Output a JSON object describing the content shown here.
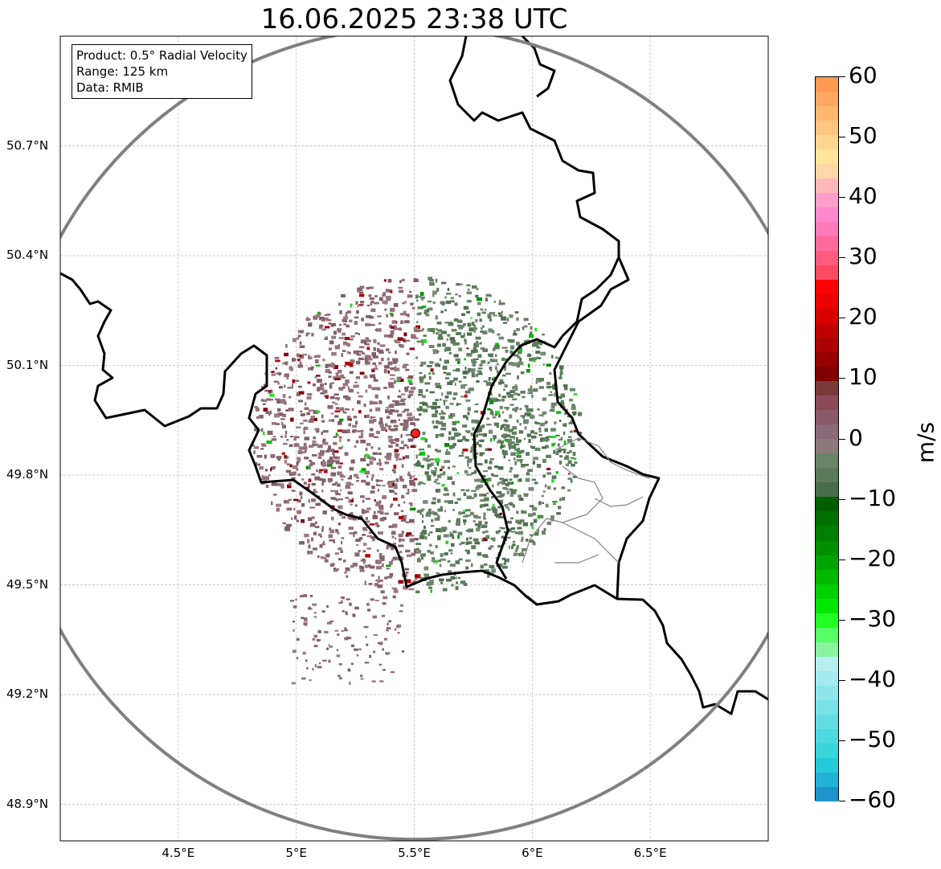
{
  "title": "16.06.2025 23:38 UTC",
  "info_box": {
    "product": "Product: 0.5° Radial Velocity",
    "range": "Range: 125 km",
    "source": "Data: RMIB"
  },
  "map": {
    "lon_range": [
      4.0,
      7.0
    ],
    "lat_range": [
      48.8,
      51.0
    ],
    "radar_site": {
      "lon": 5.505,
      "lat": 49.914
    },
    "lat_ticks": [
      {
        "value": 50.7,
        "label": "50.7°N"
      },
      {
        "value": 50.4,
        "label": "50.4°N"
      },
      {
        "value": 50.1,
        "label": "50.1°N"
      },
      {
        "value": 49.8,
        "label": "49.8°N"
      },
      {
        "value": 49.5,
        "label": "49.5°N"
      },
      {
        "value": 49.2,
        "label": "49.2°N"
      },
      {
        "value": 48.9,
        "label": "48.9°N"
      }
    ],
    "lon_ticks": [
      {
        "value": 4.5,
        "label": "4.5°E"
      },
      {
        "value": 5.0,
        "label": "5°E"
      },
      {
        "value": 5.5,
        "label": "5.5°E"
      },
      {
        "value": 6.0,
        "label": "6°E"
      },
      {
        "value": 6.5,
        "label": "6.5°E"
      }
    ],
    "range_ring_color": "#808080",
    "radar_marker_color": "#ff2020"
  },
  "colorbar": {
    "unit": "m/s",
    "range": [
      -60,
      60
    ],
    "tick_labels": [
      {
        "value": 60,
        "label": "60"
      },
      {
        "value": 50,
        "label": "50"
      },
      {
        "value": 40,
        "label": "40"
      },
      {
        "value": 30,
        "label": "30"
      },
      {
        "value": 20,
        "label": "20"
      },
      {
        "value": 10,
        "label": "10"
      },
      {
        "value": 0,
        "label": "0"
      },
      {
        "value": -10,
        "label": "−10"
      },
      {
        "value": -20,
        "label": "−20"
      },
      {
        "value": -30,
        "label": "−30"
      },
      {
        "value": -40,
        "label": "−40"
      },
      {
        "value": -50,
        "label": "−50"
      },
      {
        "value": -60,
        "label": "−60"
      }
    ],
    "colors_top_to_bottom": [
      "#ff9a55",
      "#ffa864",
      "#ffb870",
      "#ffc680",
      "#ffd590",
      "#ffe59c",
      "#ffd8a8",
      "#ffb8b8",
      "#ff9ec8",
      "#ff88cc",
      "#ff7ab8",
      "#ff6a9c",
      "#ff5a80",
      "#ff4a64",
      "#ff0000",
      "#ee0000",
      "#d80000",
      "#c20000",
      "#ac0000",
      "#960000",
      "#800000",
      "#7a3a3a",
      "#8a4a58",
      "#8a5a6a",
      "#8a6a78",
      "#8a7a7a",
      "#6a8468",
      "#5a7a5a",
      "#4a6e4a",
      "#006000",
      "#007000",
      "#008000",
      "#009000",
      "#00a400",
      "#00b800",
      "#00d000",
      "#00e800",
      "#22ff22",
      "#55ff66",
      "#88f4a0",
      "#b8eef0",
      "#a4eaee",
      "#8ee6ea",
      "#78e2e6",
      "#62dee2",
      "#4cdade",
      "#36d6da",
      "#24cad8",
      "#22b2d8",
      "#1e94cc"
    ]
  }
}
